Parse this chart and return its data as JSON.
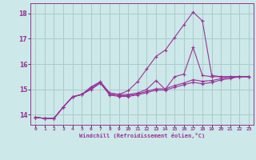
{
  "background_color": "#cce8e8",
  "grid_color": "#aacccc",
  "line_color": "#993399",
  "xlabel": "Windchill (Refroidissement éolien,°C)",
  "ylim": [
    13.6,
    18.4
  ],
  "xlim": [
    -0.5,
    23.5
  ],
  "yticks": [
    14,
    15,
    16,
    17,
    18
  ],
  "xticks": [
    0,
    1,
    2,
    3,
    4,
    5,
    6,
    7,
    8,
    9,
    10,
    11,
    12,
    13,
    14,
    15,
    16,
    17,
    18,
    19,
    20,
    21,
    22,
    23
  ],
  "series": [
    [
      13.9,
      13.85,
      13.85,
      14.3,
      14.7,
      14.8,
      15.1,
      15.3,
      14.85,
      14.8,
      14.8,
      14.85,
      15.0,
      15.35,
      15.0,
      15.5,
      15.6,
      16.65,
      15.55,
      15.5,
      15.5,
      15.5,
      15.5,
      15.5
    ],
    [
      13.9,
      13.85,
      13.85,
      14.3,
      14.7,
      14.8,
      15.05,
      15.3,
      14.85,
      14.8,
      14.95,
      15.3,
      15.8,
      16.3,
      16.55,
      17.05,
      17.55,
      18.05,
      17.7,
      15.55,
      15.5,
      15.5,
      15.5,
      15.5
    ],
    [
      13.9,
      13.85,
      13.85,
      14.3,
      14.7,
      14.8,
      15.0,
      15.25,
      14.8,
      14.75,
      14.75,
      14.82,
      14.92,
      15.02,
      15.02,
      15.15,
      15.25,
      15.38,
      15.32,
      15.35,
      15.42,
      15.48,
      15.5,
      15.5
    ],
    [
      13.9,
      13.85,
      13.85,
      14.3,
      14.7,
      14.8,
      15.0,
      15.25,
      14.78,
      14.72,
      14.72,
      14.78,
      14.87,
      14.97,
      14.97,
      15.08,
      15.18,
      15.28,
      15.22,
      15.27,
      15.37,
      15.43,
      15.5,
      15.5
    ]
  ]
}
